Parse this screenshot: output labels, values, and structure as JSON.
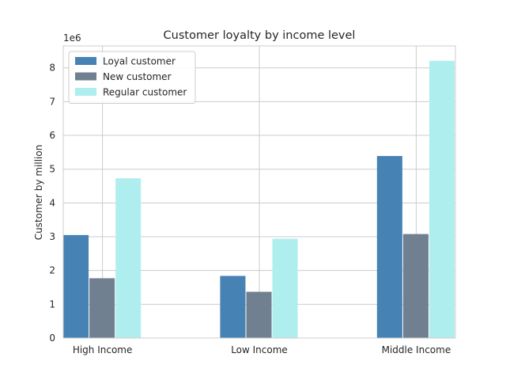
{
  "chart_data": {
    "type": "bar",
    "title": "Customer loyalty by income level",
    "xlabel": "",
    "ylabel": "Customer by million",
    "y_offset_label": "1e6",
    "categories": [
      "High Income",
      "Low Income",
      "Middle Income"
    ],
    "series": [
      {
        "name": "Loyal customer",
        "color": "#4682b4",
        "values": [
          3050000,
          1840000,
          5390000
        ]
      },
      {
        "name": "New customer",
        "color": "#708090",
        "values": [
          1770000,
          1370000,
          3080000
        ]
      },
      {
        "name": "Regular customer",
        "color": "#afeeee",
        "values": [
          4730000,
          2940000,
          8210000
        ]
      }
    ],
    "ylim": [
      0,
      8650000
    ],
    "yticks": [
      0,
      1,
      2,
      3,
      4,
      5,
      6,
      7,
      8
    ],
    "ytick_unit": 1000000,
    "grid": true,
    "legend_position": "top-left"
  }
}
